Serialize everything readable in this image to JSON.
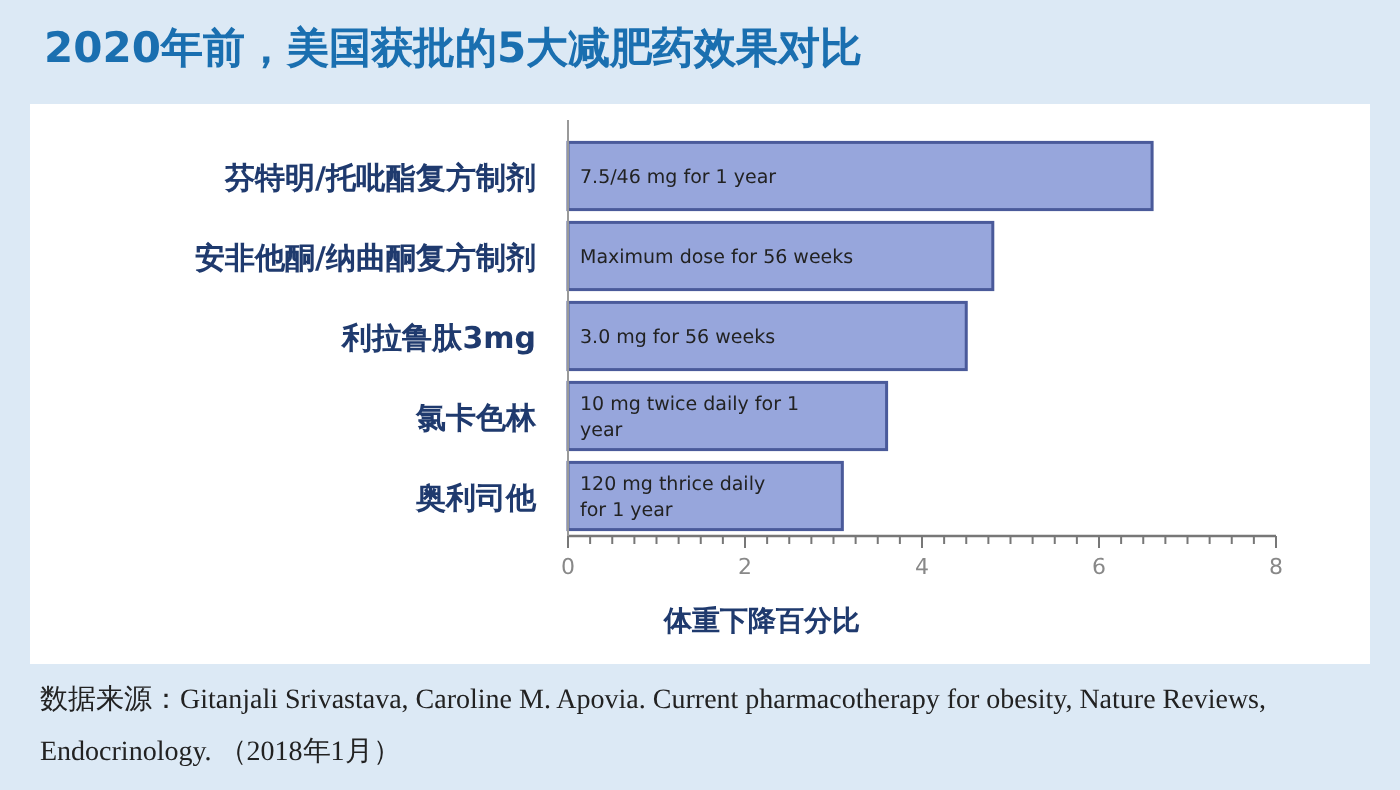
{
  "chart_data": {
    "type": "bar",
    "orientation": "horizontal",
    "title": "2020年前，美国获批的5大减肥药效果对比",
    "categories": [
      "芬特明/托吡酯复方制剂",
      "安非他酮/纳曲酮复方制剂",
      "利拉鲁肽3mg",
      "氯卡色林",
      "奥利司他"
    ],
    "values": [
      6.6,
      4.8,
      4.5,
      3.6,
      3.1
    ],
    "color": "#97a6dc",
    "xlabel": "体重下降百分比",
    "xlim": [
      0,
      8
    ],
    "xticks": [
      0,
      {
        "value": 0.25,
        "label": null
      },
      {
        "value": 0.5,
        "label": null
      },
      {
        "value": 0.75,
        "label": null
      },
      {
        "value": 1,
        "label": null
      },
      {
        "value": 1.25,
        "label": null
      },
      {
        "value": 1.5,
        "label": null
      },
      {
        "value": 1.75,
        "label": null
      },
      2,
      {
        "value": 2.25,
        "label": null
      },
      {
        "value": 2.5,
        "label": null
      },
      {
        "value": 2.75,
        "label": null
      },
      {
        "value": 3,
        "label": null
      },
      {
        "value": 3.25,
        "label": null
      },
      {
        "value": 3.5,
        "label": null
      },
      {
        "value": 3.75,
        "label": null
      },
      4,
      {
        "value": 4.25,
        "label": null
      },
      {
        "value": 4.5,
        "label": null
      },
      {
        "value": 4.75,
        "label": null
      },
      {
        "value": 5,
        "label": null
      },
      {
        "value": 5.25,
        "label": null
      },
      {
        "value": 5.5,
        "label": null
      },
      {
        "value": 5.75,
        "label": null
      },
      6,
      {
        "value": 6.25,
        "label": null
      },
      {
        "value": 6.5,
        "label": null
      },
      {
        "value": 6.75,
        "label": null
      },
      {
        "value": 7,
        "label": null
      },
      {
        "value": 7.25,
        "label": null
      },
      {
        "value": 7.5,
        "label": null
      },
      {
        "value": 7.75,
        "label": null
      },
      8
    ],
    "annotations": [
      {
        "text": "7.5/46 mg for 1 year",
        "y": "芬特明/托吡酯复方制剂"
      },
      {
        "text": "Maximum dose for 56 weeks",
        "y": "安非他酮/纳曲酮复方制剂"
      },
      {
        "text": "3.0 mg for 56 weeks",
        "y": "利拉鲁肽3mg"
      },
      {
        "text": "10 mg twice daily for 1 year",
        "y": "氯卡色林"
      },
      {
        "text": "120 mg thrice daily for 1 year",
        "y": "奥利司他"
      },
      "数据来源：Gitanjali Srivastava, Caroline M. Apovia. Current pharmacotherapy for obesity, Nature Reviews, Endocrinology. （2018年1月）"
    ]
  }
}
